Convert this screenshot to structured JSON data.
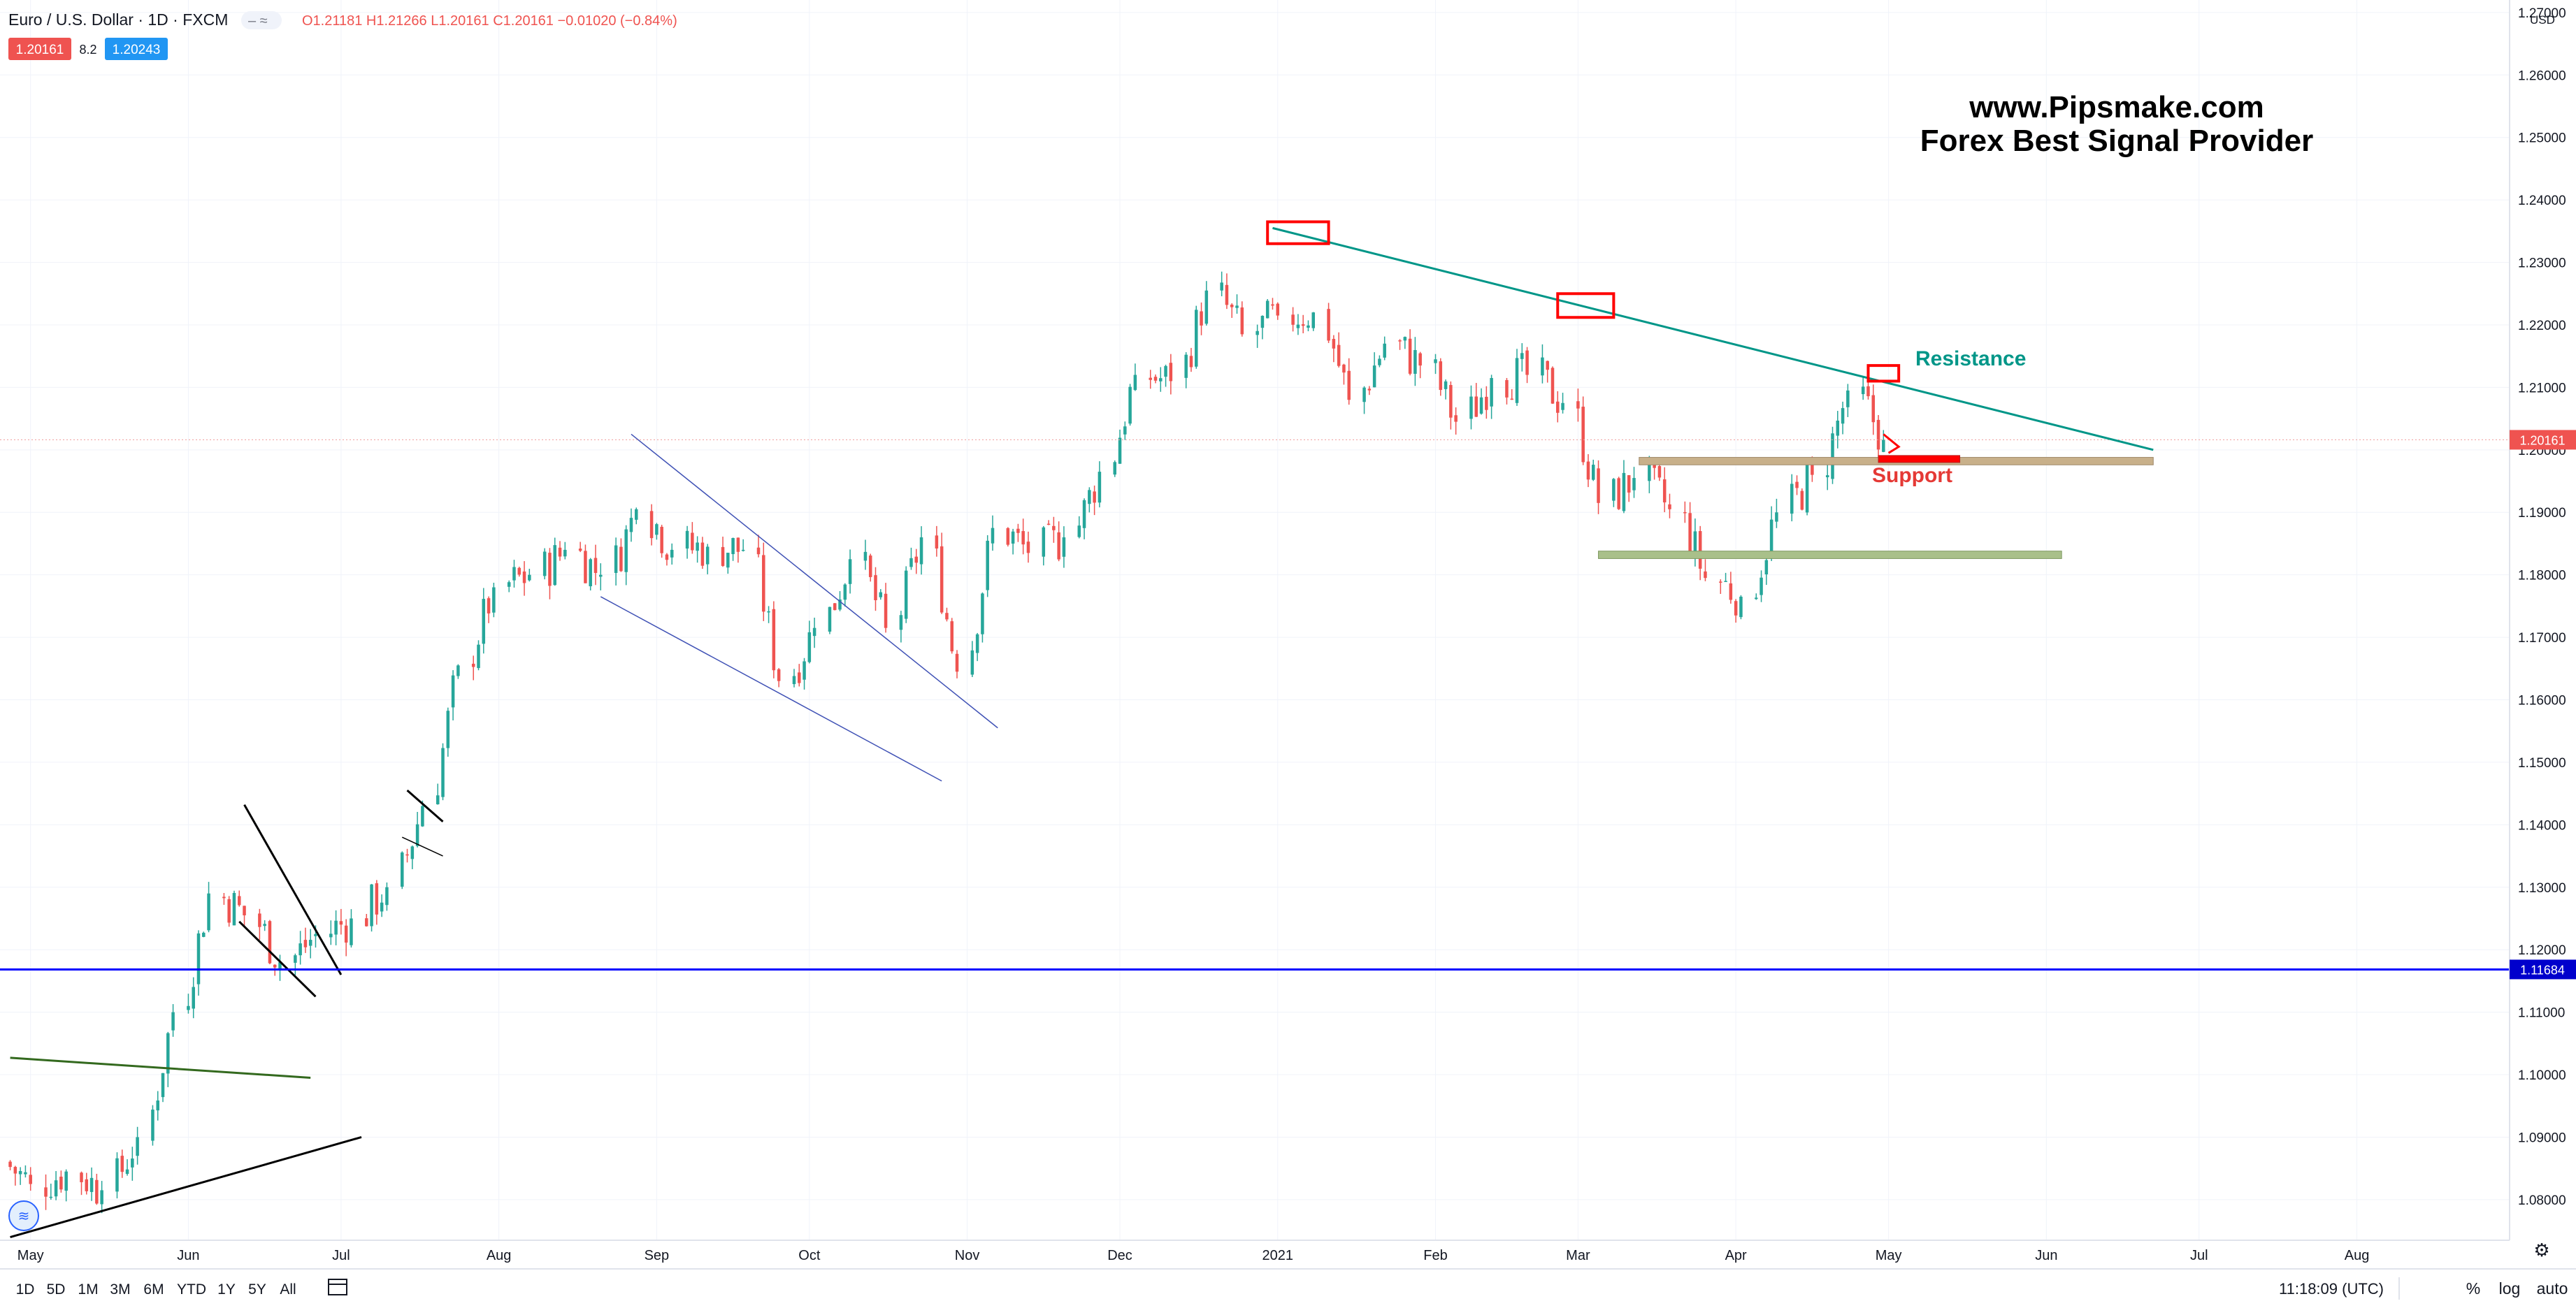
{
  "header": {
    "symbol": "Euro / U.S. Dollar · 1D · FXCM",
    "ohlc": "O1.21181 H1.21266 L1.20161 C1.20161 −0.01020 (−0.84%)",
    "sell_price": "1.20161",
    "spread": "8.2",
    "buy_price": "1.20243"
  },
  "watermark": {
    "line1": "www.Pipsmake.com",
    "line2": "Forex Best Signal Provider"
  },
  "annotations": {
    "resistance": "Resistance",
    "support": "Support"
  },
  "axis": {
    "currency": "USD",
    "y_ticks": [
      "1.08000",
      "1.09000",
      "1.10000",
      "1.11000",
      "1.12000",
      "1.13000",
      "1.14000",
      "1.15000",
      "1.16000",
      "1.17000",
      "1.18000",
      "1.19000",
      "1.20000",
      "1.21000",
      "1.22000",
      "1.23000",
      "1.24000",
      "1.25000",
      "1.26000",
      "1.27000"
    ],
    "x_ticks": [
      "May",
      "Jun",
      "Jul",
      "Aug",
      "Sep",
      "Oct",
      "Nov",
      "Dec",
      "2021",
      "Feb",
      "Mar",
      "Apr",
      "May",
      "Jun",
      "Jul",
      "Aug"
    ],
    "last_price_label": "1.20161",
    "hline_label": "1.11684"
  },
  "toolbar": {
    "ranges": [
      "1D",
      "5D",
      "1M",
      "3M",
      "6M",
      "YTD",
      "1Y",
      "5Y",
      "All"
    ],
    "clock": "11:18:09 (UTC)",
    "percent": "%",
    "log": "log",
    "auto": "auto"
  },
  "colors": {
    "up": "#26a69a",
    "down": "#ef5350",
    "blue_line": "#0000ff",
    "resistance": "#009688",
    "support_label": "#e53935",
    "box_red": "#ff0000",
    "zone_tan": "#c8b08a",
    "zone_green": "#a9c08a"
  },
  "chart_data": {
    "type": "candlestick",
    "symbol": "EURUSD",
    "timeframe": "1D",
    "y_range": [
      1.0735,
      1.272
    ],
    "x_range": [
      "2020-04-25",
      "2021-08-31"
    ],
    "closes_weekly": [
      [
        "2020-04-27",
        1.0825
      ],
      [
        "2020-05-04",
        1.0845
      ],
      [
        "2020-05-11",
        1.0815
      ],
      [
        "2020-05-18",
        1.09
      ],
      [
        "2020-05-25",
        1.11
      ],
      [
        "2020-06-01",
        1.129
      ],
      [
        "2020-06-08",
        1.1255
      ],
      [
        "2020-06-15",
        1.118
      ],
      [
        "2020-06-22",
        1.1225
      ],
      [
        "2020-06-29",
        1.125
      ],
      [
        "2020-07-06",
        1.13
      ],
      [
        "2020-07-13",
        1.143
      ],
      [
        "2020-07-20",
        1.1655
      ],
      [
        "2020-07-27",
        1.178
      ],
      [
        "2020-08-03",
        1.18
      ],
      [
        "2020-08-10",
        1.184
      ],
      [
        "2020-08-17",
        1.18
      ],
      [
        "2020-08-24",
        1.1905
      ],
      [
        "2020-08-31",
        1.184
      ],
      [
        "2020-09-07",
        1.1845
      ],
      [
        "2020-09-14",
        1.184
      ],
      [
        "2020-09-21",
        1.163
      ],
      [
        "2020-09-28",
        1.1715
      ],
      [
        "2020-10-05",
        1.1825
      ],
      [
        "2020-10-12",
        1.1715
      ],
      [
        "2020-10-19",
        1.186
      ],
      [
        "2020-10-26",
        1.1645
      ],
      [
        "2020-11-02",
        1.1875
      ],
      [
        "2020-11-09",
        1.1835
      ],
      [
        "2020-11-16",
        1.186
      ],
      [
        "2020-11-23",
        1.1965
      ],
      [
        "2020-11-30",
        1.212
      ],
      [
        "2020-12-07",
        1.211
      ],
      [
        "2020-12-14",
        1.2255
      ],
      [
        "2020-12-21",
        1.2185
      ],
      [
        "2020-12-28",
        1.2215
      ],
      [
        "2021-01-04",
        1.222
      ],
      [
        "2021-01-11",
        1.208
      ],
      [
        "2021-01-18",
        1.217
      ],
      [
        "2021-01-25",
        1.2135
      ],
      [
        "2021-02-01",
        1.2045
      ],
      [
        "2021-02-08",
        1.2115
      ],
      [
        "2021-02-15",
        1.212
      ],
      [
        "2021-02-22",
        1.2075
      ],
      [
        "2021-03-01",
        1.1915
      ],
      [
        "2021-03-08",
        1.1955
      ],
      [
        "2021-03-15",
        1.1905
      ],
      [
        "2021-03-22",
        1.1795
      ],
      [
        "2021-03-29",
        1.1765
      ],
      [
        "2021-04-05",
        1.19
      ],
      [
        "2021-04-12",
        1.196
      ],
      [
        "2021-04-19",
        1.2095
      ],
      [
        "2021-04-26",
        1.2016
      ]
    ],
    "last_price": 1.20161,
    "horizontal_line": 1.11684,
    "resistance_trendline": [
      [
        "2020-12-31",
        1.2355
      ],
      [
        "2021-06-22",
        1.2
      ]
    ],
    "support_zones": [
      [
        1.1976,
        1.1988
      ],
      [
        1.1826,
        1.1838
      ]
    ],
    "annotations": [
      "Resistance",
      "Support"
    ]
  }
}
